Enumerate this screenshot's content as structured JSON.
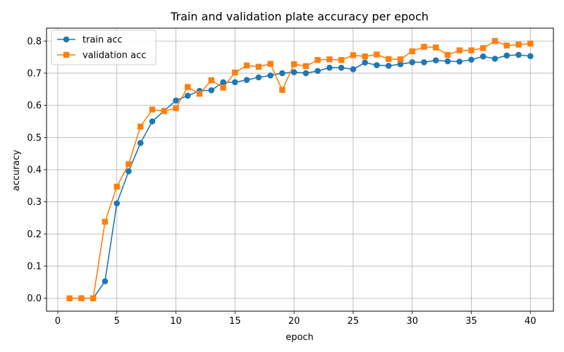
{
  "chart_data": {
    "type": "line",
    "title": "Train and validation plate accuracy per epoch",
    "xlabel": "epoch",
    "ylabel": "accuracy",
    "xlim": [
      -0.95,
      41.95
    ],
    "ylim": [
      -0.04,
      0.84
    ],
    "xticks": [
      0,
      5,
      10,
      15,
      20,
      25,
      30,
      35,
      40
    ],
    "yticks": [
      0.0,
      0.1,
      0.2,
      0.3,
      0.4,
      0.5,
      0.6,
      0.7,
      0.8
    ],
    "xtick_labels": [
      "0",
      "5",
      "10",
      "15",
      "20",
      "25",
      "30",
      "35",
      "40"
    ],
    "ytick_labels": [
      "0.0",
      "0.1",
      "0.2",
      "0.3",
      "0.4",
      "0.5",
      "0.6",
      "0.7",
      "0.8"
    ],
    "grid": true,
    "legend_position": "top-left",
    "x": [
      1,
      2,
      3,
      4,
      5,
      6,
      7,
      8,
      9,
      10,
      11,
      12,
      13,
      14,
      15,
      16,
      17,
      18,
      19,
      20,
      21,
      22,
      23,
      24,
      25,
      26,
      27,
      28,
      29,
      30,
      31,
      32,
      33,
      34,
      35,
      36,
      37,
      38,
      39,
      40
    ],
    "series": [
      {
        "name": "train acc",
        "color": "#1f77b4",
        "marker": "circle",
        "values": [
          0.0,
          0.0,
          0.0,
          0.053,
          0.295,
          0.395,
          0.483,
          0.55,
          0.583,
          0.615,
          0.63,
          0.645,
          0.647,
          0.672,
          0.672,
          0.679,
          0.687,
          0.693,
          0.7,
          0.703,
          0.7,
          0.707,
          0.717,
          0.717,
          0.712,
          0.733,
          0.725,
          0.723,
          0.728,
          0.734,
          0.734,
          0.74,
          0.737,
          0.736,
          0.742,
          0.752,
          0.745,
          0.755,
          0.757,
          0.753
        ]
      },
      {
        "name": "validation acc",
        "color": "#ff7f0e",
        "marker": "square",
        "values": [
          0.0,
          0.0,
          0.0,
          0.238,
          0.347,
          0.417,
          0.534,
          0.587,
          0.582,
          0.591,
          0.657,
          0.636,
          0.678,
          0.655,
          0.702,
          0.724,
          0.72,
          0.729,
          0.648,
          0.728,
          0.722,
          0.741,
          0.743,
          0.741,
          0.756,
          0.752,
          0.758,
          0.744,
          0.743,
          0.768,
          0.782,
          0.78,
          0.757,
          0.771,
          0.771,
          0.778,
          0.8,
          0.786,
          0.789,
          0.792
        ]
      }
    ]
  }
}
